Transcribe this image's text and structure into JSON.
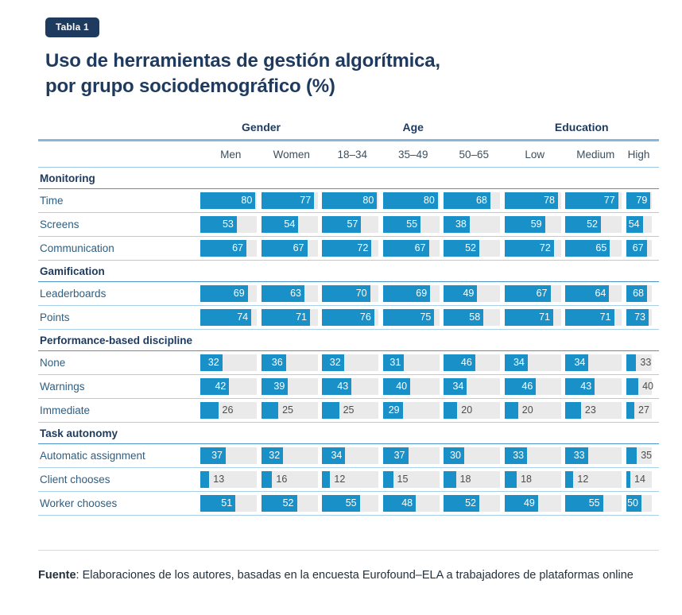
{
  "badge": "Tabla 1",
  "title_lines": {
    "line1": "Uso de herramientas de gestión algorítmica,",
    "line2": "por grupo sociodemográfico (%)"
  },
  "colors": {
    "bar_fill": "#1a90c8",
    "bar_track": "#eaeaea",
    "navy_text": "#1e3a5f",
    "badge_bg": "#1e3a5f",
    "header_line": "#8ab6da",
    "section_line": "#4d92c8",
    "row_line": "#aacfe9"
  },
  "chart_data": {
    "type": "bar",
    "layout": "horizontal-bar-table",
    "title": "Uso de herramientas de gestión algorítmica, por grupo sociodemográfico (%)",
    "unit": "%",
    "scale_max": 82,
    "column_groups": [
      {
        "label": "Gender",
        "span": 2
      },
      {
        "label": "Age",
        "span": 3
      },
      {
        "label": "Education",
        "span": 3
      }
    ],
    "columns": [
      "Men",
      "Women",
      "18–34",
      "35–49",
      "50–65",
      "Low",
      "Medium",
      "High"
    ],
    "sections": [
      {
        "label": "Monitoring",
        "rows": [
          {
            "label": "Time",
            "values": [
              80,
              77,
              80,
              80,
              68,
              78,
              77,
              79
            ]
          },
          {
            "label": "Screens",
            "values": [
              53,
              54,
              57,
              55,
              38,
              59,
              52,
              54
            ]
          },
          {
            "label": "Communication",
            "values": [
              67,
              67,
              72,
              67,
              52,
              72,
              65,
              67
            ]
          }
        ]
      },
      {
        "label": "Gamification",
        "rows": [
          {
            "label": "Leaderboards",
            "values": [
              69,
              63,
              70,
              69,
              49,
              67,
              64,
              68
            ]
          },
          {
            "label": "Points",
            "values": [
              74,
              71,
              76,
              75,
              58,
              71,
              71,
              73
            ]
          }
        ]
      },
      {
        "label": "Performance-based discipline",
        "rows": [
          {
            "label": "None",
            "values": [
              32,
              36,
              32,
              31,
              46,
              34,
              34,
              33
            ]
          },
          {
            "label": "Warnings",
            "values": [
              42,
              39,
              43,
              40,
              34,
              46,
              43,
              40
            ]
          },
          {
            "label": "Immediate",
            "values": [
              26,
              25,
              25,
              29,
              20,
              20,
              23,
              27
            ]
          }
        ]
      },
      {
        "label": "Task autonomy",
        "rows": [
          {
            "label": "Automatic assignment",
            "values": [
              37,
              32,
              34,
              37,
              30,
              33,
              33,
              35
            ]
          },
          {
            "label": "Client chooses",
            "values": [
              13,
              16,
              12,
              15,
              18,
              18,
              12,
              14
            ]
          },
          {
            "label": "Worker chooses",
            "values": [
              51,
              52,
              55,
              48,
              52,
              49,
              55,
              50
            ]
          }
        ]
      }
    ]
  },
  "footer": {
    "label": "Fuente",
    "text": ": Elaboraciones de los autores, basadas en la encuesta Eurofound–ELA a trabajadores de plataformas online"
  }
}
